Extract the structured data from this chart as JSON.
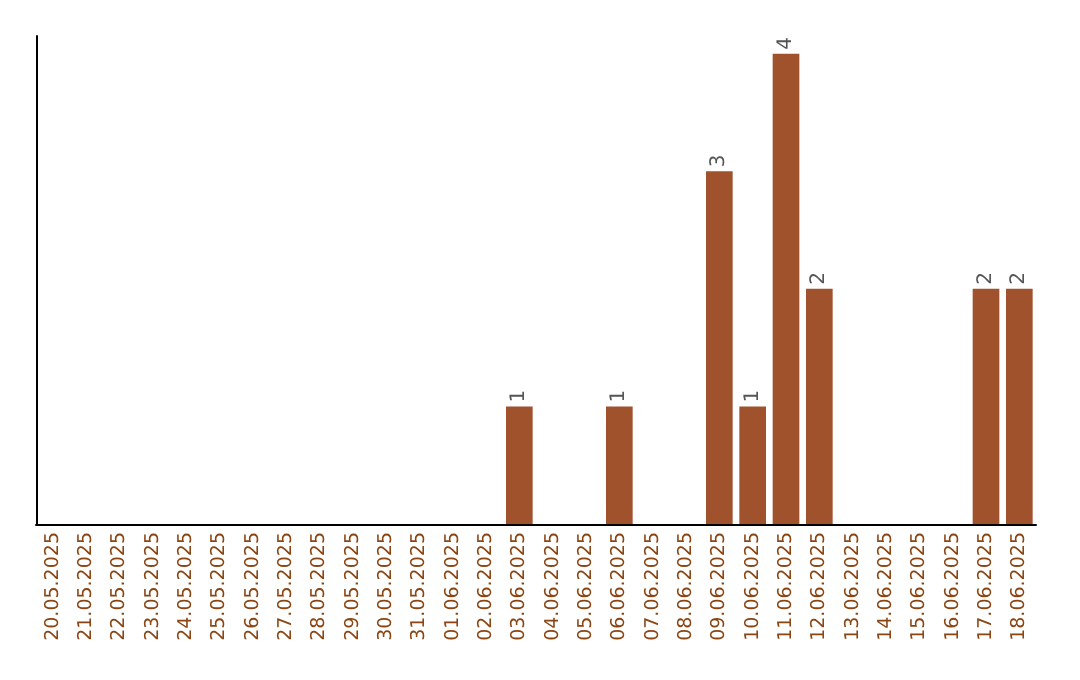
{
  "chart_data": {
    "type": "bar",
    "categories": [
      "20.05.2025",
      "21.05.2025",
      "22.05.2025",
      "23.05.2025",
      "24.05.2025",
      "25.05.2025",
      "26.05.2025",
      "27.05.2025",
      "28.05.2025",
      "29.05.2025",
      "30.05.2025",
      "31.05.2025",
      "01.06.2025",
      "02.06.2025",
      "03.06.2025",
      "04.06.2025",
      "05.06.2025",
      "06.06.2025",
      "07.06.2025",
      "08.06.2025",
      "09.06.2025",
      "10.06.2025",
      "11.06.2025",
      "12.06.2025",
      "13.06.2025",
      "14.06.2025",
      "15.06.2025",
      "16.06.2025",
      "17.06.2025",
      "18.06.2025"
    ],
    "values": [
      null,
      null,
      null,
      null,
      null,
      null,
      null,
      null,
      null,
      null,
      null,
      null,
      null,
      null,
      1,
      null,
      null,
      1,
      null,
      null,
      3,
      1,
      4,
      2,
      null,
      null,
      null,
      null,
      2,
      2
    ],
    "data_labels": true,
    "color": "#a0522d",
    "ylim": [
      0,
      4.15
    ],
    "tick_labels": "x",
    "grid": false
  }
}
